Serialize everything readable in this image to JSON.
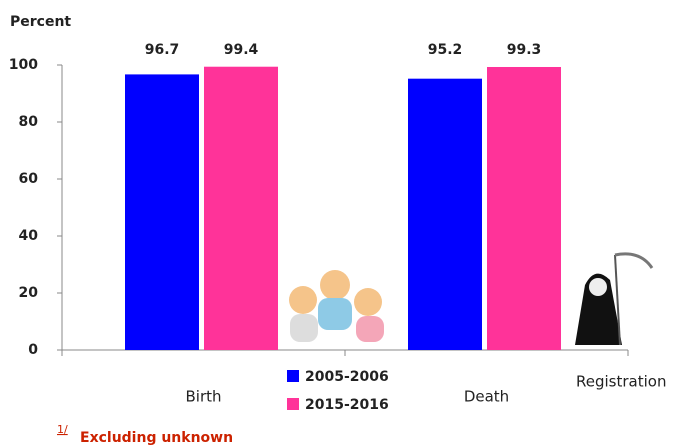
{
  "chart_data": {
    "type": "bar",
    "y_label": "Percent",
    "x_label": "Registration",
    "categories": [
      "Birth",
      "Death"
    ],
    "series": [
      {
        "name": "2005-2006",
        "color": "#0000ff",
        "values": [
          96.7,
          95.2
        ]
      },
      {
        "name": "2015-2016",
        "color": "#ff3399",
        "values": [
          99.4,
          99.3
        ]
      }
    ],
    "ylim": [
      0,
      100
    ],
    "yticks": [
      0,
      20,
      40,
      60,
      80,
      100
    ],
    "footnote_marker": "1/",
    "footnote": "Excluding unknown"
  }
}
